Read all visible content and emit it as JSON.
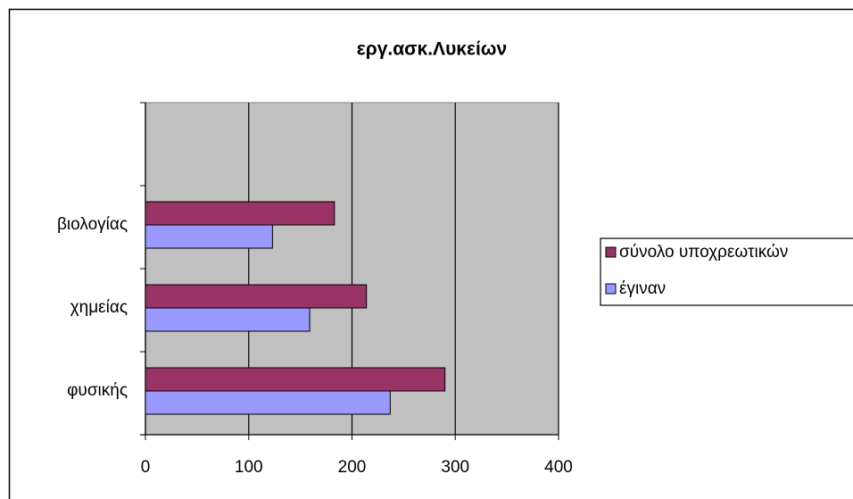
{
  "chart_data": {
    "type": "bar",
    "orientation": "horizontal",
    "title": "εργ.ασκ.Λυκείων",
    "categories": [
      "φυσικής",
      "χημείας",
      "βιολογίας",
      null
    ],
    "series": [
      {
        "name": "σύνολο υποχρεωτικών",
        "color": "#993366",
        "values": [
          290,
          214,
          183,
          null
        ]
      },
      {
        "name": "έγιναν",
        "color": "#9999ff",
        "values": [
          237,
          159,
          123,
          null
        ]
      }
    ],
    "xlim": [
      0,
      400
    ],
    "xticks": [
      0,
      100,
      200,
      300,
      400
    ],
    "grid": true,
    "legend": "right"
  }
}
